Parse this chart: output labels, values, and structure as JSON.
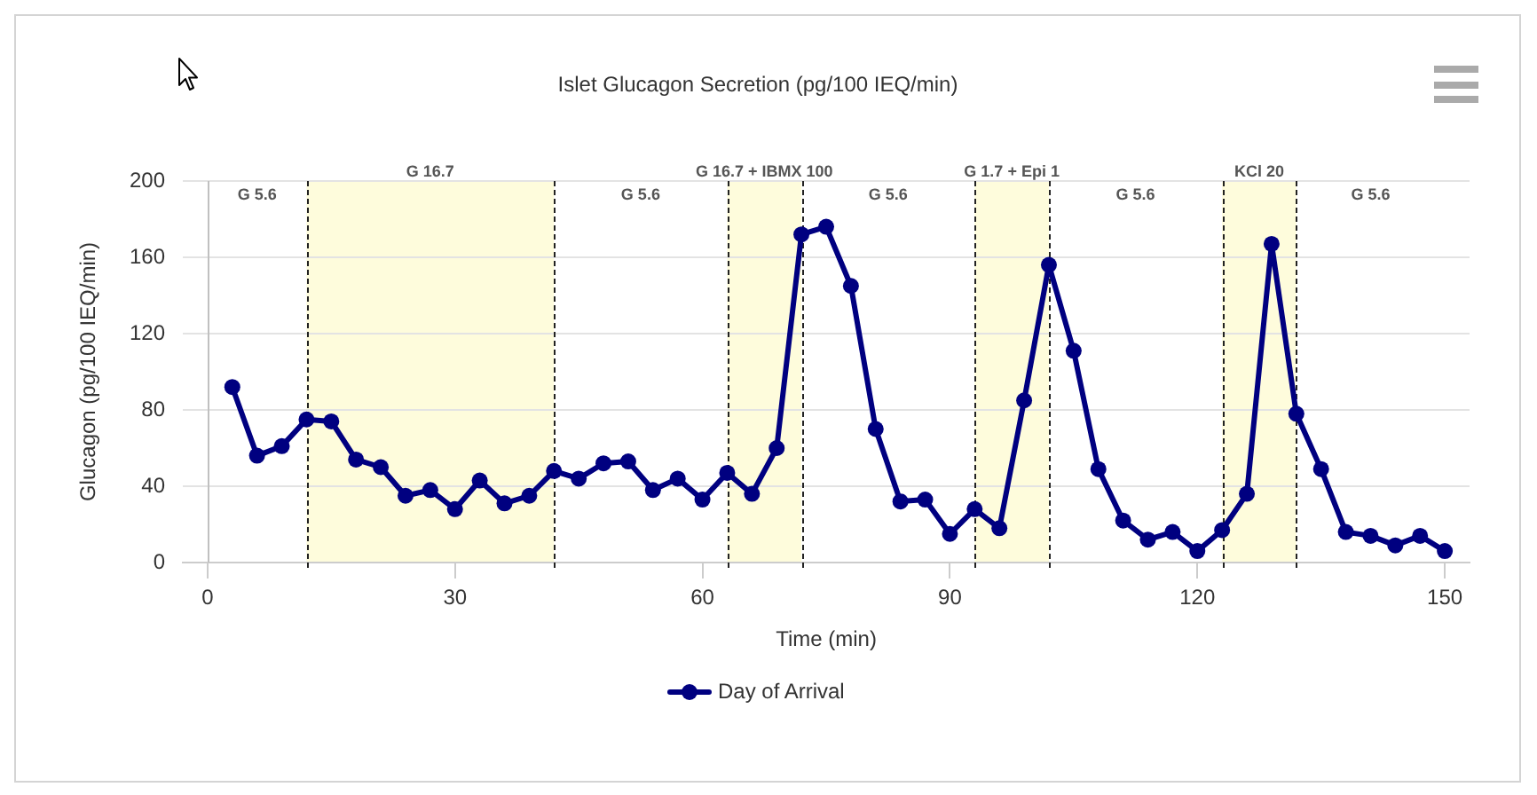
{
  "chart_data": {
    "type": "line",
    "title": "Islet Glucagon Secretion (pg/100 IEQ/min)",
    "xlabel": "Time (min)",
    "ylabel": "Glucagon (pg/100 IEQ/min)",
    "x": [
      3,
      6,
      9,
      12,
      15,
      18,
      21,
      24,
      27,
      30,
      33,
      36,
      39,
      42,
      45,
      48,
      51,
      54,
      57,
      60,
      63,
      66,
      69,
      72,
      75,
      78,
      81,
      84,
      87,
      90,
      93,
      96,
      99,
      102,
      105,
      108,
      111,
      114,
      117,
      120,
      123,
      126,
      129,
      132,
      135,
      138,
      141,
      144,
      147,
      150
    ],
    "series": [
      {
        "name": "Day of Arrival",
        "color": "#000080",
        "values": [
          92,
          56,
          61,
          75,
          74,
          54,
          50,
          35,
          38,
          28,
          43,
          31,
          35,
          48,
          44,
          52,
          53,
          38,
          44,
          33,
          47,
          36,
          60,
          172,
          176,
          145,
          70,
          32,
          33,
          15,
          28,
          18,
          85,
          156,
          111,
          49,
          22,
          12,
          16,
          6,
          17,
          36,
          167,
          78,
          49,
          16,
          14,
          9,
          14,
          6
        ]
      }
    ],
    "xlim": [
      -3,
      153
    ],
    "xticks": [
      0,
      30,
      60,
      90,
      120,
      150
    ],
    "ylim": [
      0,
      200
    ],
    "yticks": [
      0,
      40,
      80,
      120,
      160,
      200
    ],
    "bands": [
      {
        "axis": "x",
        "from": 12,
        "to": 42,
        "label": "G 16.7",
        "color": "#fefcdc"
      },
      {
        "axis": "x",
        "from": 63,
        "to": 72,
        "label": "G 16.7 + IBMX 100",
        "color": "#fefcdc"
      },
      {
        "axis": "x",
        "from": 93,
        "to": 102,
        "label": "G 1.7 + Epi 1",
        "color": "#fefcdc"
      },
      {
        "axis": "x",
        "from": 123,
        "to": 132,
        "label": "KCl 20",
        "color": "#fefcdc"
      }
    ],
    "annotations": [
      "G 5.6",
      "G 5.6",
      "G 5.6",
      "G 5.6",
      "G 5.6"
    ],
    "grid": "y",
    "legend": "bottom",
    "marker": "circle",
    "line_style": "solid"
  }
}
